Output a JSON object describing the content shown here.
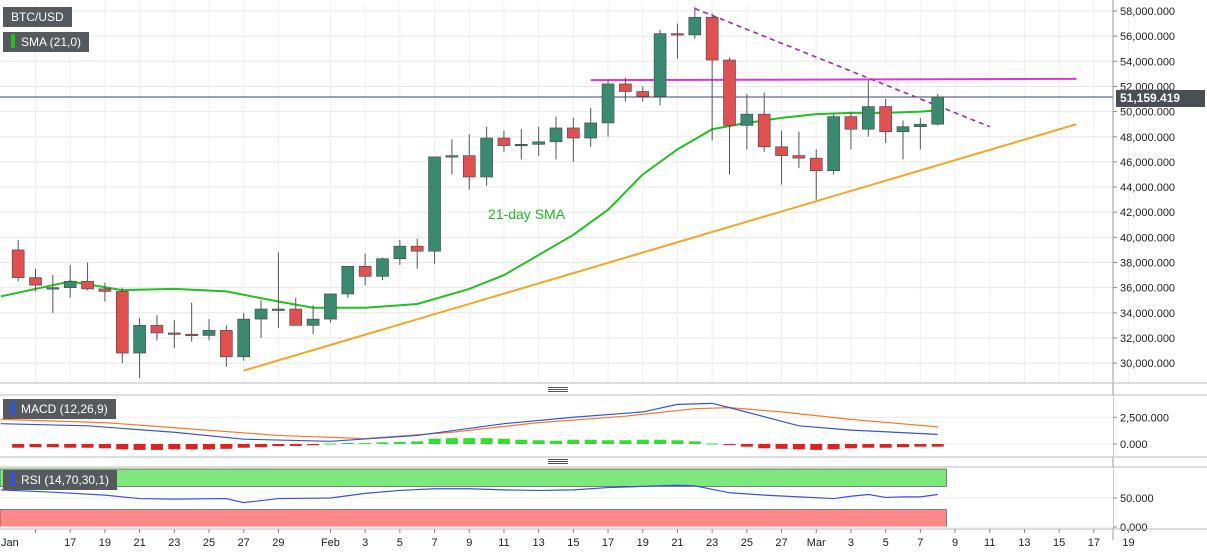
{
  "legends": {
    "symbol": "BTC/USD",
    "sma": "SMA (21,0)",
    "macd": "MACD (12,26,9)",
    "rsi": "RSI (14,70,30,1)"
  },
  "price_tag": "51,159.419",
  "annotation": "21-day SMA",
  "colors": {
    "up": "#3a8a72",
    "down": "#e05050",
    "sma": "#22c022",
    "trend_support": "#f5a623",
    "resistance_horizontal": "#e033e0",
    "resistance_dashed": "#9b2fae",
    "macd_line": "#3355dd",
    "signal_line": "#ff7722",
    "hist_pos": "#33dd33",
    "hist_neg": "#dd2222",
    "rsi_line": "#3355dd",
    "rsi_overbought": "#7ee87e",
    "rsi_oversold": "#ff8a8a"
  },
  "chart_data": [
    {
      "type": "candlestick",
      "title": "BTC/USD",
      "ylim": [
        28500,
        59000
      ],
      "y_ticks": [
        30000,
        32000,
        34000,
        36000,
        38000,
        40000,
        42000,
        44000,
        46000,
        48000,
        50000,
        52000,
        54000,
        56000,
        58000
      ],
      "y_tick_labels": [
        "30,000.000",
        "32,000.000",
        "34,000.000",
        "36,000.000",
        "38,000.000",
        "40,000.000",
        "42,000.000",
        "44,000.000",
        "46,000.000",
        "48,000.000",
        "50,000.000",
        "52,000.000",
        "54,000.000",
        "56,000.000",
        "58,000.000"
      ],
      "x_tick_labels": [
        "Jan",
        "17",
        "19",
        "21",
        "23",
        "25",
        "27",
        "29",
        "Feb",
        "3",
        "5",
        "7",
        "9",
        "11",
        "13",
        "15",
        "17",
        "19",
        "21",
        "23",
        "25",
        "27",
        "Mar",
        "3",
        "5",
        "7",
        "9",
        "11",
        "13",
        "15",
        "17",
        "19"
      ],
      "x_tick_days": [
        0,
        2,
        4,
        6,
        8,
        10,
        12,
        14,
        17,
        19,
        21,
        23,
        25,
        27,
        29,
        31,
        33,
        35,
        37,
        39,
        41,
        43,
        45,
        47,
        49,
        51,
        53,
        55,
        57,
        59,
        61,
        63
      ],
      "candles": [
        {
          "day": -1,
          "o": 39000,
          "h": 39800,
          "l": 36500,
          "c": 36800
        },
        {
          "day": 0,
          "o": 36800,
          "h": 37500,
          "l": 35700,
          "c": 36200
        },
        {
          "day": 1,
          "o": 36000,
          "h": 37000,
          "l": 34000,
          "c": 36000
        },
        {
          "day": 2,
          "o": 36000,
          "h": 37800,
          "l": 35200,
          "c": 36500
        },
        {
          "day": 3,
          "o": 36500,
          "h": 38000,
          "l": 35800,
          "c": 35900
        },
        {
          "day": 4,
          "o": 35900,
          "h": 36400,
          "l": 34900,
          "c": 35700
        },
        {
          "day": 5,
          "o": 35700,
          "h": 36000,
          "l": 30000,
          "c": 30800
        },
        {
          "day": 6,
          "o": 30800,
          "h": 33600,
          "l": 28800,
          "c": 33000
        },
        {
          "day": 7,
          "o": 33000,
          "h": 33800,
          "l": 31800,
          "c": 32400
        },
        {
          "day": 8,
          "o": 32400,
          "h": 33400,
          "l": 31200,
          "c": 32300
        },
        {
          "day": 9,
          "o": 32300,
          "h": 34800,
          "l": 31700,
          "c": 32200
        },
        {
          "day": 10,
          "o": 32200,
          "h": 33500,
          "l": 31800,
          "c": 32600
        },
        {
          "day": 11,
          "o": 32600,
          "h": 33000,
          "l": 29700,
          "c": 30500
        },
        {
          "day": 12,
          "o": 30500,
          "h": 34000,
          "l": 30200,
          "c": 33500
        },
        {
          "day": 13,
          "o": 33500,
          "h": 35000,
          "l": 32000,
          "c": 34300
        },
        {
          "day": 14,
          "o": 34300,
          "h": 38800,
          "l": 32800,
          "c": 34300
        },
        {
          "day": 15,
          "o": 34300,
          "h": 35200,
          "l": 33100,
          "c": 33000
        },
        {
          "day": 16,
          "o": 33000,
          "h": 34600,
          "l": 32300,
          "c": 33500
        },
        {
          "day": 17,
          "o": 33500,
          "h": 35300,
          "l": 33200,
          "c": 35500
        },
        {
          "day": 18,
          "o": 35500,
          "h": 37600,
          "l": 35200,
          "c": 37700
        },
        {
          "day": 19,
          "o": 37700,
          "h": 38700,
          "l": 36200,
          "c": 36900
        },
        {
          "day": 20,
          "o": 36900,
          "h": 38400,
          "l": 36600,
          "c": 38300
        },
        {
          "day": 21,
          "o": 38300,
          "h": 39800,
          "l": 37800,
          "c": 39300
        },
        {
          "day": 22,
          "o": 39300,
          "h": 39900,
          "l": 37500,
          "c": 38900
        },
        {
          "day": 23,
          "o": 38900,
          "h": 46300,
          "l": 37900,
          "c": 46400
        },
        {
          "day": 24,
          "o": 46400,
          "h": 47800,
          "l": 45000,
          "c": 46500
        },
        {
          "day": 25,
          "o": 46500,
          "h": 48200,
          "l": 43800,
          "c": 44800
        },
        {
          "day": 26,
          "o": 44800,
          "h": 48800,
          "l": 44100,
          "c": 47900
        },
        {
          "day": 27,
          "o": 47900,
          "h": 48500,
          "l": 46800,
          "c": 47300
        },
        {
          "day": 28,
          "o": 47300,
          "h": 48600,
          "l": 46200,
          "c": 47400
        },
        {
          "day": 29,
          "o": 47400,
          "h": 48800,
          "l": 46500,
          "c": 47600
        },
        {
          "day": 30,
          "o": 47600,
          "h": 49600,
          "l": 46200,
          "c": 48700
        },
        {
          "day": 31,
          "o": 48700,
          "h": 49500,
          "l": 46000,
          "c": 47900
        },
        {
          "day": 32,
          "o": 47900,
          "h": 50300,
          "l": 47200,
          "c": 49100
        },
        {
          "day": 33,
          "o": 49100,
          "h": 52500,
          "l": 48000,
          "c": 52200
        },
        {
          "day": 34,
          "o": 52200,
          "h": 52700,
          "l": 50800,
          "c": 51600
        },
        {
          "day": 35,
          "o": 51600,
          "h": 52000,
          "l": 50800,
          "c": 51200
        },
        {
          "day": 36,
          "o": 51200,
          "h": 56500,
          "l": 50500,
          "c": 56200
        },
        {
          "day": 37,
          "o": 56200,
          "h": 57000,
          "l": 54200,
          "c": 56100
        },
        {
          "day": 38,
          "o": 56100,
          "h": 58300,
          "l": 55800,
          "c": 57500
        },
        {
          "day": 39,
          "o": 57500,
          "h": 57800,
          "l": 47700,
          "c": 54100
        },
        {
          "day": 40,
          "o": 54100,
          "h": 54300,
          "l": 45000,
          "c": 48900
        },
        {
          "day": 41,
          "o": 48900,
          "h": 51400,
          "l": 47000,
          "c": 49800
        },
        {
          "day": 42,
          "o": 49800,
          "h": 51500,
          "l": 46800,
          "c": 47200
        },
        {
          "day": 43,
          "o": 47200,
          "h": 48500,
          "l": 44200,
          "c": 46500
        },
        {
          "day": 44,
          "o": 46500,
          "h": 48400,
          "l": 45500,
          "c": 46300
        },
        {
          "day": 45,
          "o": 46300,
          "h": 47000,
          "l": 43000,
          "c": 45300
        },
        {
          "day": 46,
          "o": 45300,
          "h": 49800,
          "l": 45000,
          "c": 49600
        },
        {
          "day": 47,
          "o": 49600,
          "h": 50000,
          "l": 47000,
          "c": 48600
        },
        {
          "day": 48,
          "o": 48600,
          "h": 52500,
          "l": 48000,
          "c": 50400
        },
        {
          "day": 49,
          "o": 50400,
          "h": 51000,
          "l": 47500,
          "c": 48400
        },
        {
          "day": 50,
          "o": 48400,
          "h": 49300,
          "l": 46200,
          "c": 48800
        },
        {
          "day": 51,
          "o": 48800,
          "h": 49500,
          "l": 47000,
          "c": 49000
        },
        {
          "day": 52,
          "o": 49000,
          "h": 51400,
          "l": 48900,
          "c": 51159
        }
      ],
      "sma21": [
        [
          -2,
          35300
        ],
        [
          2,
          36500
        ],
        [
          5,
          35800
        ],
        [
          8,
          35900
        ],
        [
          11,
          35700
        ],
        [
          14,
          34900
        ],
        [
          16,
          34400
        ],
        [
          19,
          34400
        ],
        [
          22,
          34700
        ],
        [
          25,
          35900
        ],
        [
          27,
          37000
        ],
        [
          29,
          38600
        ],
        [
          31,
          40200
        ],
        [
          33,
          42200
        ],
        [
          35,
          45000
        ],
        [
          37,
          47000
        ],
        [
          39,
          48600
        ],
        [
          41,
          49100
        ],
        [
          43,
          49500
        ],
        [
          45,
          49800
        ],
        [
          47,
          49900
        ],
        [
          49,
          49900
        ],
        [
          51,
          50000
        ],
        [
          52,
          50100
        ]
      ],
      "support_line": [
        [
          12,
          29400
        ],
        [
          60,
          49000
        ]
      ],
      "horizontal_resistance": [
        [
          32,
          52500
        ],
        [
          60,
          52600
        ]
      ],
      "dashed_resistance": [
        [
          38,
          58200
        ],
        [
          55,
          48800
        ]
      ],
      "last_price": 51159.419
    },
    {
      "type": "line",
      "title": "MACD (12,26,9)",
      "y_ticks": [
        0,
        2500
      ],
      "y_tick_labels": [
        "0.000",
        "2,500.000"
      ],
      "ylim": [
        -800,
        4500
      ],
      "macd": [
        [
          -2,
          1900
        ],
        [
          3,
          1700
        ],
        [
          8,
          1100
        ],
        [
          12,
          450
        ],
        [
          17,
          250
        ],
        [
          22,
          800
        ],
        [
          27,
          1900
        ],
        [
          31,
          2500
        ],
        [
          35,
          3000
        ],
        [
          37,
          3700
        ],
        [
          39,
          3800
        ],
        [
          40,
          3400
        ],
        [
          44,
          1700
        ],
        [
          47,
          1300
        ],
        [
          52,
          900
        ]
      ],
      "signal": [
        [
          -2,
          2300
        ],
        [
          4,
          2000
        ],
        [
          9,
          1400
        ],
        [
          14,
          800
        ],
        [
          19,
          500
        ],
        [
          24,
          1100
        ],
        [
          29,
          2000
        ],
        [
          34,
          2600
        ],
        [
          38,
          3300
        ],
        [
          40,
          3400
        ],
        [
          43,
          3000
        ],
        [
          47,
          2300
        ],
        [
          52,
          1600
        ]
      ],
      "histogram": [
        {
          "day": -1,
          "v": -350
        },
        {
          "day": 0,
          "v": -300
        },
        {
          "day": 1,
          "v": -300
        },
        {
          "day": 2,
          "v": -350
        },
        {
          "day": 3,
          "v": -350
        },
        {
          "day": 4,
          "v": -400
        },
        {
          "day": 5,
          "v": -500
        },
        {
          "day": 6,
          "v": -550
        },
        {
          "day": 7,
          "v": -550
        },
        {
          "day": 8,
          "v": -500
        },
        {
          "day": 9,
          "v": -500
        },
        {
          "day": 10,
          "v": -500
        },
        {
          "day": 11,
          "v": -450
        },
        {
          "day": 12,
          "v": -350
        },
        {
          "day": 13,
          "v": -300
        },
        {
          "day": 14,
          "v": -200
        },
        {
          "day": 15,
          "v": -180
        },
        {
          "day": 16,
          "v": -120
        },
        {
          "day": 17,
          "v": 50
        },
        {
          "day": 18,
          "v": 100
        },
        {
          "day": 19,
          "v": 100
        },
        {
          "day": 20,
          "v": 150
        },
        {
          "day": 21,
          "v": 200
        },
        {
          "day": 22,
          "v": 250
        },
        {
          "day": 23,
          "v": 500
        },
        {
          "day": 24,
          "v": 550
        },
        {
          "day": 25,
          "v": 550
        },
        {
          "day": 26,
          "v": 550
        },
        {
          "day": 27,
          "v": 500
        },
        {
          "day": 28,
          "v": 400
        },
        {
          "day": 29,
          "v": 350
        },
        {
          "day": 30,
          "v": 300
        },
        {
          "day": 31,
          "v": 400
        },
        {
          "day": 32,
          "v": 400
        },
        {
          "day": 33,
          "v": 350
        },
        {
          "day": 34,
          "v": 350
        },
        {
          "day": 35,
          "v": 400
        },
        {
          "day": 36,
          "v": 400
        },
        {
          "day": 37,
          "v": 350
        },
        {
          "day": 38,
          "v": 250
        },
        {
          "day": 39,
          "v": 50
        },
        {
          "day": 40,
          "v": -80
        },
        {
          "day": 41,
          "v": -250
        },
        {
          "day": 42,
          "v": -400
        },
        {
          "day": 43,
          "v": -450
        },
        {
          "day": 44,
          "v": -500
        },
        {
          "day": 45,
          "v": -550
        },
        {
          "day": 46,
          "v": -500
        },
        {
          "day": 47,
          "v": -400
        },
        {
          "day": 48,
          "v": -350
        },
        {
          "day": 49,
          "v": -350
        },
        {
          "day": 50,
          "v": -300
        },
        {
          "day": 51,
          "v": -250
        },
        {
          "day": 52,
          "v": -250
        }
      ]
    },
    {
      "type": "line",
      "title": "RSI (14,70,30,1)",
      "y_ticks": [
        0,
        50
      ],
      "y_tick_labels": [
        "0.000",
        "50.000"
      ],
      "ylim": [
        -5,
        100
      ],
      "bands": {
        "overbought": 70,
        "oversold": 30
      },
      "rsi": [
        [
          -2,
          64
        ],
        [
          1,
          60
        ],
        [
          4,
          55
        ],
        [
          6,
          49
        ],
        [
          8,
          48
        ],
        [
          11,
          49
        ],
        [
          12,
          42
        ],
        [
          14,
          49
        ],
        [
          17,
          50
        ],
        [
          19,
          58
        ],
        [
          21,
          63
        ],
        [
          23,
          66
        ],
        [
          25,
          66
        ],
        [
          27,
          64
        ],
        [
          29,
          63
        ],
        [
          31,
          64
        ],
        [
          33,
          68
        ],
        [
          35,
          70
        ],
        [
          37,
          72
        ],
        [
          38,
          71
        ],
        [
          40,
          59
        ],
        [
          42,
          55
        ],
        [
          44,
          52
        ],
        [
          46,
          49
        ],
        [
          47,
          53
        ],
        [
          48,
          56
        ],
        [
          49,
          51
        ],
        [
          50,
          52
        ],
        [
          51,
          52
        ],
        [
          52,
          56
        ]
      ]
    }
  ]
}
